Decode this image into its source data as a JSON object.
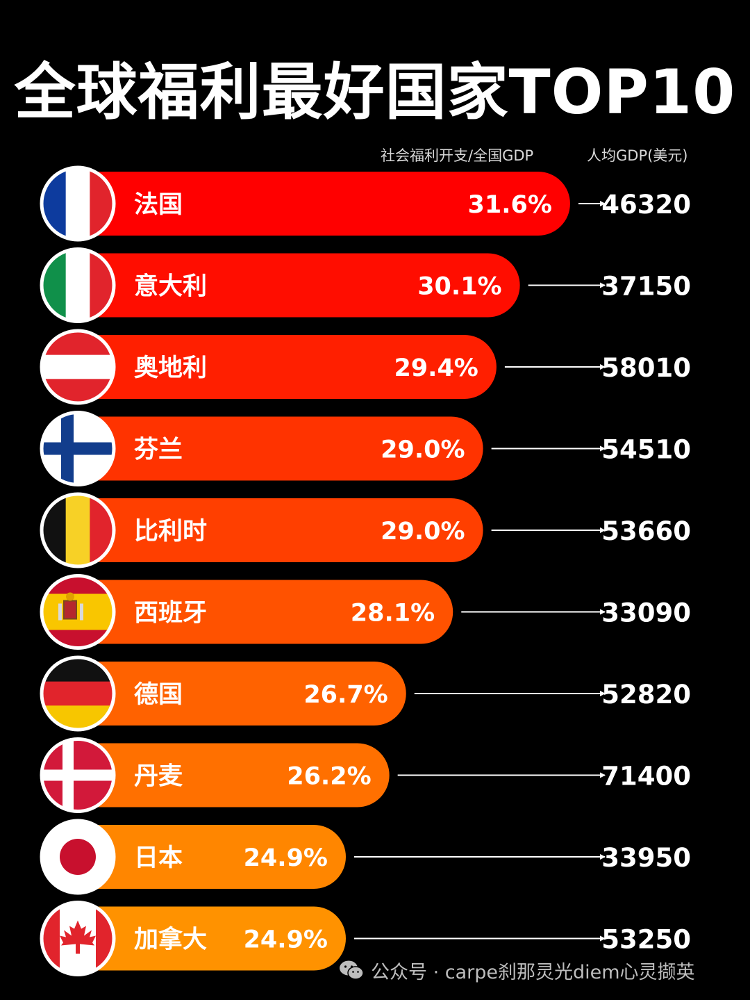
{
  "title": "全球福利最好国家TOP10",
  "column_headers": {
    "percent": "社会福利开支/全国GDP",
    "gdp": "人均GDP(美元)"
  },
  "watermark": "公众号 · carpe刹那灵光diem心灵撷英",
  "chart_data": {
    "type": "bar",
    "orientation": "horizontal",
    "categories": [
      "法国",
      "意大利",
      "奥地利",
      "芬兰",
      "比利时",
      "西班牙",
      "德国",
      "丹麦",
      "日本",
      "加拿大"
    ],
    "series": [
      {
        "name": "社会福利开支/全国GDP",
        "values": [
          31.6,
          30.1,
          29.4,
          29.0,
          29.0,
          28.1,
          26.7,
          26.2,
          24.9,
          24.9
        ],
        "labels": [
          "31.6%",
          "30.1%",
          "29.4%",
          "29.0%",
          "29.0%",
          "28.1%",
          "26.7%",
          "26.2%",
          "24.9%",
          "24.9%"
        ]
      },
      {
        "name": "人均GDP(美元)",
        "values": [
          46320,
          37150,
          58010,
          54510,
          53660,
          33090,
          52820,
          71400,
          33950,
          53250
        ]
      }
    ],
    "flags": [
      "france-flag-icon",
      "italy-flag-icon",
      "austria-flag-icon",
      "finland-flag-icon",
      "belgium-flag-icon",
      "spain-flag-icon",
      "germany-flag-icon",
      "denmark-flag-icon",
      "japan-flag-icon",
      "canada-flag-icon"
    ],
    "bar_colors": [
      "#ff0000",
      "#ff0d00",
      "#ff1f00",
      "#ff3300",
      "#ff3f00",
      "#ff5200",
      "#ff6200",
      "#ff7000",
      "#ff8600",
      "#ff9200"
    ]
  }
}
